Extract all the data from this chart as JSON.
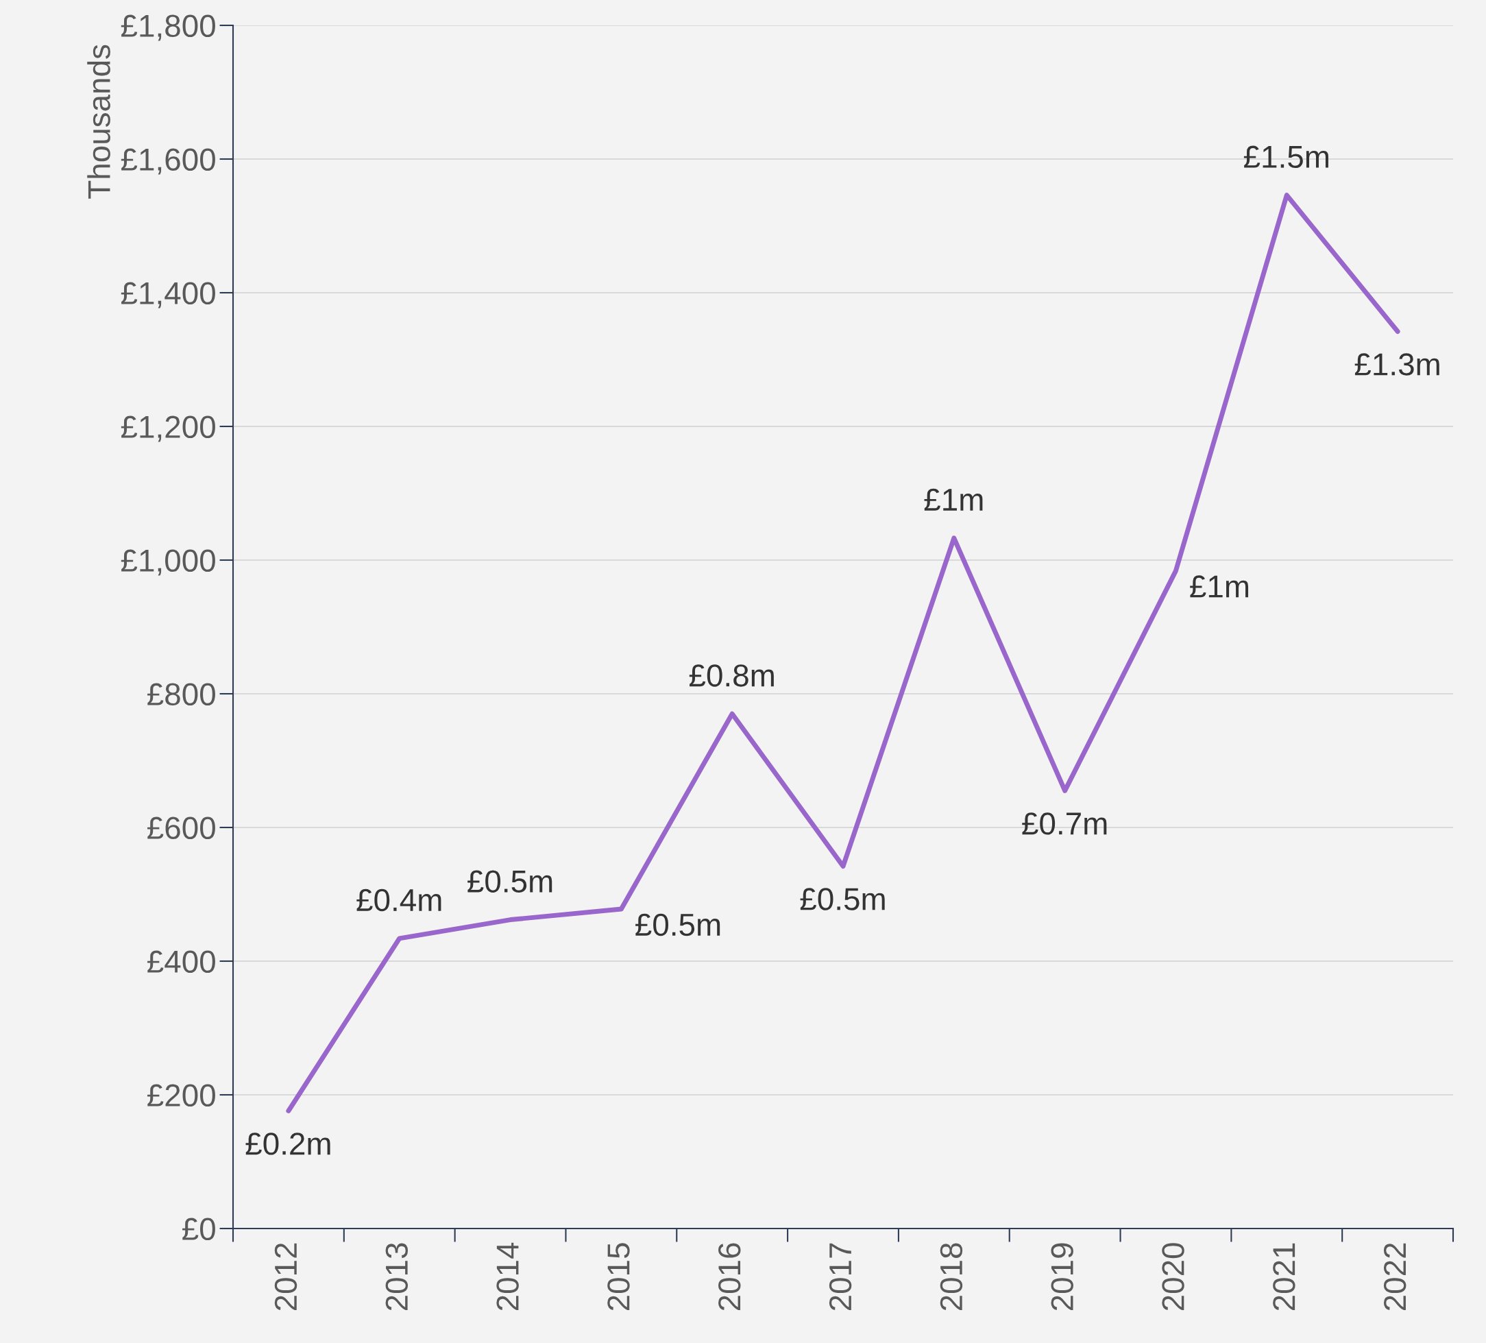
{
  "chart_data": {
    "type": "line",
    "ylabel": "Thousands",
    "categories": [
      "2012",
      "2013",
      "2014",
      "2015",
      "2016",
      "2017",
      "2018",
      "2019",
      "2020",
      "2021",
      "2022"
    ],
    "series": [
      {
        "color": "#9966cc",
        "values": [
          176,
          434,
          462,
          478,
          770,
          542,
          1033,
          655,
          984,
          1546,
          1342
        ]
      }
    ],
    "annotations": [
      {
        "text": "£0.2m",
        "x": "2012",
        "y": 176
      },
      {
        "text": "£0.4m",
        "x": "2013",
        "y": 434
      },
      {
        "text": "£0.5m",
        "x": "2014",
        "y": 462
      },
      {
        "text": "£0.5m",
        "x": "2015",
        "y": 478
      },
      {
        "text": "£0.8m",
        "x": "2016",
        "y": 770
      },
      {
        "text": "£0.5m",
        "x": "2017",
        "y": 542
      },
      {
        "text": "£1m",
        "x": "2018",
        "y": 1033
      },
      {
        "text": "£0.7m",
        "x": "2019",
        "y": 655
      },
      {
        "text": "£1m",
        "x": "2020",
        "y": 984
      },
      {
        "text": "£1.5m",
        "x": "2021",
        "y": 1546
      },
      {
        "text": "£1.3m",
        "x": "2022",
        "y": 1342
      }
    ],
    "ylim": [
      0,
      1800
    ],
    "yticks": [
      {
        "value": 0,
        "label": "£0"
      },
      {
        "value": 200,
        "label": "£200"
      },
      {
        "value": 400,
        "label": "£400"
      },
      {
        "value": 600,
        "label": "£600"
      },
      {
        "value": 800,
        "label": "£800"
      },
      {
        "value": 1000,
        "label": "£1,000"
      },
      {
        "value": 1200,
        "label": "£1,200"
      },
      {
        "value": 1400,
        "label": "£1,400"
      },
      {
        "value": 1600,
        "label": "£1,600"
      },
      {
        "value": 1800,
        "label": "£1,800"
      }
    ],
    "grid": "y",
    "marker": "none",
    "line_style": "solid",
    "legend": false
  }
}
